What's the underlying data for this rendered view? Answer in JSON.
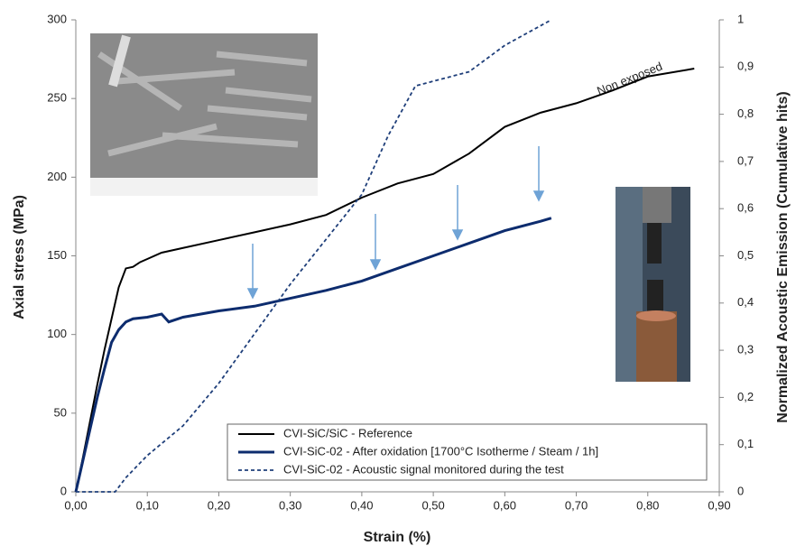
{
  "chart_data": {
    "type": "line",
    "xlabel": "Strain (%)",
    "ylabel": "Axial stress (MPa)",
    "y2label": "Normalized Acoustic Emission (Cumulative hits)",
    "annotations": [
      "Non exposed"
    ],
    "xlim": [
      0,
      0.9
    ],
    "ylim": [
      0,
      300
    ],
    "y2lim": [
      0,
      1
    ],
    "xticks": [
      {
        "value": 0,
        "label": "0,00"
      },
      {
        "value": 0.1,
        "label": "0,10"
      },
      {
        "value": 0.2,
        "label": "0,20"
      },
      {
        "value": 0.3,
        "label": "0,30"
      },
      {
        "value": 0.4,
        "label": "0,40"
      },
      {
        "value": 0.5,
        "label": "0,50"
      },
      {
        "value": 0.6,
        "label": "0,60"
      },
      {
        "value": 0.7,
        "label": "0,70"
      },
      {
        "value": 0.8,
        "label": "0,80"
      },
      {
        "value": 0.9,
        "label": "0,90"
      }
    ],
    "yticks": [
      0,
      50,
      100,
      150,
      200,
      250,
      300
    ],
    "y2ticks": [
      0,
      {
        "value": 0.1,
        "label": "0,1"
      },
      {
        "value": 0.2,
        "label": "0,2"
      },
      {
        "value": 0.3,
        "label": "0,3"
      },
      {
        "value": 0.4,
        "label": "0,4"
      },
      {
        "value": 0.5,
        "label": "0,5"
      },
      {
        "value": 0.6,
        "label": "0,6"
      },
      {
        "value": 0.7,
        "label": "0,7"
      },
      {
        "value": 0.8,
        "label": "0,8"
      },
      {
        "value": 0.9,
        "label": "0,9"
      },
      1
    ],
    "series": [
      {
        "name": "CVI-SiC/SiC - Reference",
        "color": "#000000",
        "line_style": "solid",
        "x": [
          0,
          0.01,
          0.02,
          0.03,
          0.04,
          0.05,
          0.06,
          0.07,
          0.08,
          0.09,
          0.1,
          0.12,
          0.15,
          0.2,
          0.25,
          0.3,
          0.35,
          0.4,
          0.45,
          0.5,
          0.55,
          0.6,
          0.65,
          0.7,
          0.75,
          0.8,
          0.865
        ],
        "values": [
          0,
          22,
          45,
          68,
          90,
          110,
          130,
          142,
          143,
          146,
          148,
          152,
          155,
          160,
          165,
          170,
          176,
          187,
          196,
          202,
          215,
          232,
          241,
          247,
          255,
          264,
          269
        ]
      },
      {
        "name": "CVI-SiC-02 - After oxidation [1700°C Isotherme / Steam / 1h]",
        "color": "#0d2c6e",
        "line_style": "thick",
        "x": [
          0,
          0.01,
          0.02,
          0.03,
          0.04,
          0.05,
          0.06,
          0.07,
          0.08,
          0.1,
          0.12,
          0.13,
          0.15,
          0.2,
          0.25,
          0.3,
          0.35,
          0.4,
          0.45,
          0.5,
          0.55,
          0.6,
          0.65,
          0.665
        ],
        "values": [
          0,
          20,
          40,
          60,
          78,
          95,
          103,
          108,
          110,
          111,
          113,
          108,
          111,
          115,
          118,
          123,
          128,
          134,
          142,
          150,
          158,
          166,
          172,
          174
        ]
      },
      {
        "name": "CVI-SiC-02 - Acoustic signal monitored during the test",
        "color": "#1f3f7a",
        "line_style": "dashed",
        "axis": "y2",
        "x": [
          0,
          0.055,
          0.06,
          0.07,
          0.1,
          0.15,
          0.2,
          0.25,
          0.3,
          0.35,
          0.4,
          0.437,
          0.475,
          0.5,
          0.55,
          0.6,
          0.665
        ],
        "values": [
          0,
          0,
          0.01,
          0.03,
          0.077,
          0.14,
          0.23,
          0.335,
          0.44,
          0.535,
          0.63,
          0.755,
          0.86,
          0.87,
          0.89,
          0.946,
          1
        ]
      }
    ]
  }
}
